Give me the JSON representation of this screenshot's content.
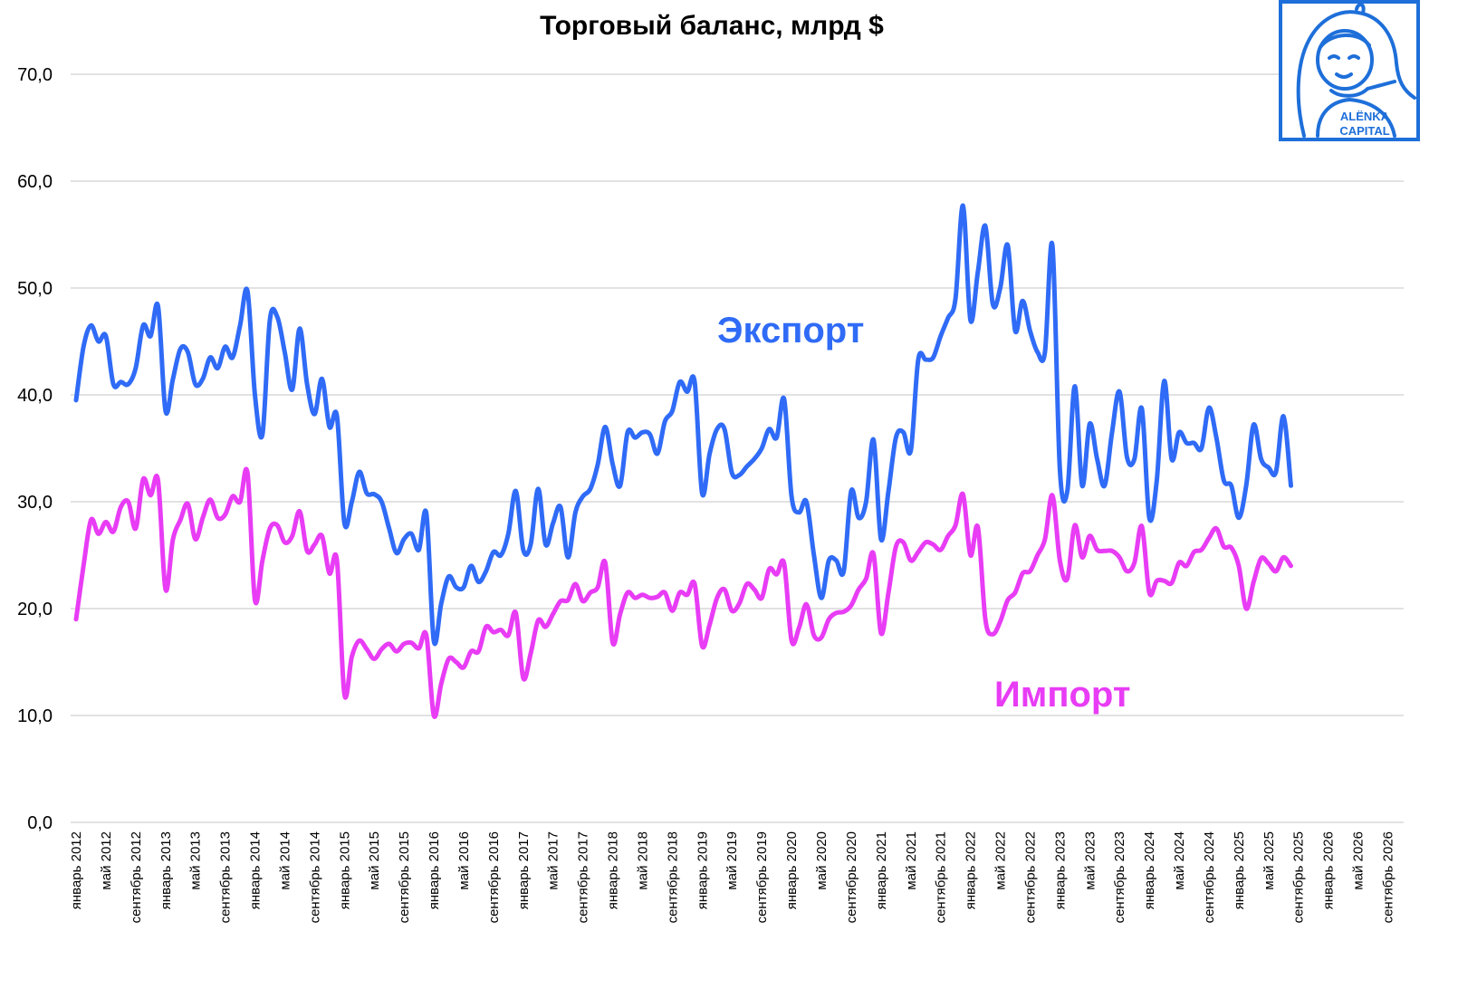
{
  "chart_data": {
    "type": "line",
    "title": "Торговый баланс, млрд $",
    "xlabel": "",
    "ylabel": "",
    "ylim": [
      0,
      70
    ],
    "yticks": [
      "0,0",
      "10,0",
      "20,0",
      "30,0",
      "40,0",
      "50,0",
      "60,0",
      "70,0"
    ],
    "grid": true,
    "x_start": "январь 2012",
    "x_frequency": "monthly",
    "x_tick_labels": [
      "январь 2012",
      "май 2012",
      "сентябрь 2012",
      "январь 2013",
      "май 2013",
      "сентябрь 2013",
      "январь 2014",
      "май 2014",
      "сентябрь 2014",
      "январь 2015",
      "май 2015",
      "сентябрь 2015",
      "январь 2016",
      "май 2016",
      "сентябрь 2016",
      "январь 2017",
      "май 2017",
      "сентябрь 2017",
      "январь 2018",
      "май 2018",
      "сентябрь 2018",
      "январь 2019",
      "май 2019",
      "сентябрь 2019",
      "январь 2020",
      "май 2020",
      "сентябрь 2020",
      "январь 2021",
      "май 2021",
      "сентябрь 2021",
      "январь 2022",
      "май 2022",
      "сентябрь 2022",
      "январь 2023",
      "май 2023",
      "сентябрь 2023",
      "январь 2024",
      "май 2024",
      "сентябрь 2024",
      "январь 2025",
      "май 2025",
      "сентябрь 2025",
      "январь 2026",
      "май 2026",
      "сентябрь 2026"
    ],
    "series": [
      {
        "name": "Экспорт",
        "color": "#2F6BF6",
        "values": [
          39.5,
          44.5,
          46.5,
          45,
          45.5,
          41,
          41.2,
          41,
          42.5,
          46.5,
          45.5,
          48.3,
          38.5,
          41.5,
          44.3,
          44,
          41,
          41.5,
          43.5,
          42.5,
          44.5,
          43.5,
          46.5,
          49.7,
          40,
          36.3,
          47,
          47.3,
          44,
          40.5,
          46.2,
          41,
          38.2,
          41.5,
          37,
          38,
          28,
          30,
          32.8,
          30.8,
          30.7,
          30,
          27.5,
          25.2,
          26.5,
          27,
          25.5,
          28.9,
          17,
          20.5,
          23,
          22,
          22,
          24,
          22.5,
          23.5,
          25.3,
          25,
          27,
          31,
          25.5,
          26,
          31.2,
          26,
          28,
          29.5,
          24.8,
          29,
          30.5,
          31.2,
          33.5,
          37,
          33.5,
          31.5,
          36.5,
          36,
          36.5,
          36.3,
          34.5,
          37.5,
          38.5,
          41.2,
          40.3,
          41.2,
          30.8,
          34.5,
          36.8,
          36.8,
          32.7,
          32.5,
          33.3,
          34,
          35,
          36.8,
          36,
          39.6,
          30.5,
          29,
          30,
          25,
          21,
          24.5,
          24.5,
          23.5,
          31,
          28.5,
          30,
          35.8,
          26.5,
          31,
          36,
          36.5,
          34.8,
          43.3,
          43.3,
          43.5,
          45.5,
          47.2,
          49,
          57.7,
          47,
          51.5,
          55.8,
          48.5,
          50,
          54,
          46,
          48.8,
          46,
          44,
          44,
          54,
          33,
          31,
          40.8,
          31.5,
          37.3,
          34,
          31.5,
          36.5,
          40.3,
          34.2,
          34,
          38.7,
          28.5,
          32,
          41.3,
          34,
          36.5,
          35.5,
          35.5,
          35,
          38.8,
          36,
          32,
          31.5,
          28.5,
          31.5,
          37.2,
          34,
          33.2,
          32.8,
          38,
          31.5
        ]
      },
      {
        "name": "Импорт",
        "color": "#E83CF5",
        "values": [
          19,
          24,
          28.3,
          27,
          28.1,
          27.2,
          29.5,
          30,
          27.5,
          32.1,
          30.6,
          32,
          21.8,
          26.5,
          28.3,
          29.8,
          26.5,
          28.5,
          30.2,
          28.5,
          28.8,
          30.5,
          30,
          32.7,
          20.8,
          24.5,
          27.5,
          27.8,
          26.2,
          26.8,
          29.1,
          25.4,
          26,
          26.8,
          23.3,
          24.5,
          12,
          15.5,
          17,
          16.2,
          15.3,
          16.2,
          16.7,
          16,
          16.7,
          16.8,
          16.3,
          17.5,
          10,
          13,
          15.3,
          15,
          14.5,
          16,
          16,
          18.3,
          17.8,
          18,
          17.5,
          19.6,
          13.5,
          15.8,
          18.9,
          18.3,
          19.5,
          20.7,
          20.8,
          22.3,
          20.7,
          21.5,
          22,
          24.3,
          16.8,
          19.5,
          21.5,
          21,
          21.3,
          21,
          21.1,
          21.5,
          19.8,
          21.5,
          21.3,
          22.3,
          16.5,
          18.5,
          21,
          21.8,
          19.8,
          20.5,
          22.3,
          21.8,
          21,
          23.7,
          23.2,
          24.2,
          17,
          18.2,
          20.4,
          17.5,
          17.3,
          19,
          19.6,
          19.7,
          20.3,
          21.8,
          22.8,
          25.1,
          17.7,
          21.5,
          25.8,
          26.2,
          24.5,
          25.3,
          26.2,
          26,
          25.5,
          26.8,
          27.8,
          30.7,
          25,
          27.6,
          19,
          17.6,
          18.8,
          20.8,
          21.5,
          23.3,
          23.5,
          25,
          26.5,
          30.6,
          24.5,
          22.8,
          27.8,
          24.8,
          26.8,
          25.5,
          25.4,
          25.4,
          24.8,
          23.5,
          24.3,
          27.7,
          21.5,
          22.6,
          22.6,
          22.4,
          24.3,
          24,
          25.3,
          25.5,
          26.6,
          27.5,
          25.8,
          25.7,
          24,
          20,
          22.5,
          24.7,
          24.2,
          23.5,
          24.8,
          24
        ]
      }
    ],
    "annotations": [
      "Экспорт",
      "Импорт"
    ]
  },
  "logo": {
    "line1": "ALЁNKA",
    "line2": "CAPITAL",
    "color": "#1E6FD9"
  }
}
